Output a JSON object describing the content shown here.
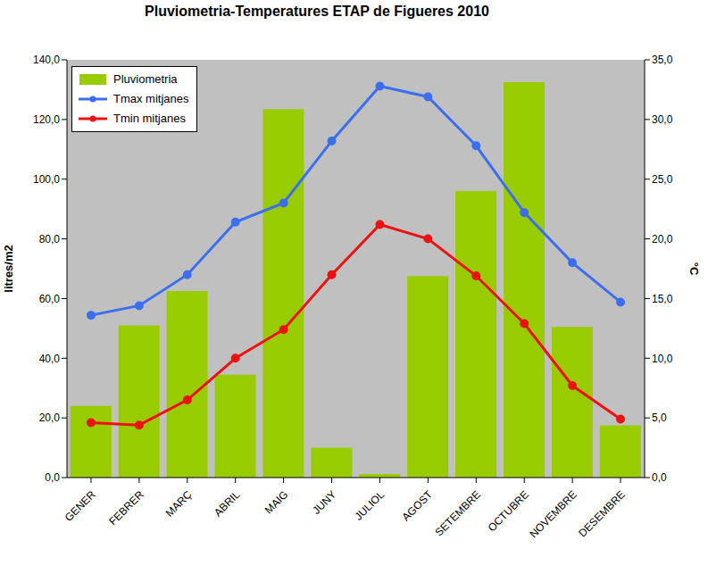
{
  "chart_data": {
    "type": "bar",
    "title": "Pluviometria-Temperatures ETAP de Figueres 2010",
    "categories": [
      "GENER",
      "FEBRER",
      "MARÇ",
      "ABRIL",
      "MAIG",
      "JUNY",
      "JULIOL",
      "AGOST",
      "SETEMBRE",
      "OCTUBRE",
      "NOVEMBRE",
      "DESEMBRE"
    ],
    "series": [
      {
        "name": "Pluviometria",
        "type": "bar",
        "color": "#99cc00",
        "values": [
          24,
          51,
          62.5,
          34.5,
          123.5,
          10,
          1.2,
          67.5,
          96,
          132.5,
          50.5,
          17.5
        ]
      },
      {
        "name": "Tmax mitjanes",
        "type": "line",
        "axis": "y2",
        "color": "#3b6ff0",
        "marker": "circle",
        "values": [
          13.6,
          14.4,
          17.0,
          21.4,
          23.0,
          28.2,
          32.8,
          31.9,
          27.8,
          22.2,
          18.0,
          14.7
        ]
      },
      {
        "name": "Tmin mitjanes",
        "type": "line",
        "axis": "y2",
        "color": "#ee1111",
        "marker": "circle",
        "values": [
          4.6,
          4.4,
          6.5,
          10.0,
          12.4,
          17.0,
          21.2,
          20.0,
          16.9,
          12.9,
          7.7,
          4.9
        ]
      }
    ],
    "ylabel": "litres/m2",
    "y2label": "°C",
    "ylim": [
      0,
      140
    ],
    "yticks": [
      {
        "value": 0,
        "label": "0,0"
      },
      {
        "value": 20,
        "label": "20,0"
      },
      {
        "value": 40,
        "label": "40,0"
      },
      {
        "value": 60,
        "label": "60,0"
      },
      {
        "value": 80,
        "label": "80,0"
      },
      {
        "value": 100,
        "label": "100,0"
      },
      {
        "value": 120,
        "label": "120,0"
      },
      {
        "value": 140,
        "label": "140,0"
      }
    ],
    "y2lim": [
      0,
      35
    ],
    "y2ticks": [
      {
        "value": 0,
        "label": "0,0"
      },
      {
        "value": 5,
        "label": "5,0"
      },
      {
        "value": 10,
        "label": "10,0"
      },
      {
        "value": 15,
        "label": "15,0"
      },
      {
        "value": 20,
        "label": "20,0"
      },
      {
        "value": 25,
        "label": "25,0"
      },
      {
        "value": 30,
        "label": "30,0"
      },
      {
        "value": 35,
        "label": "35,0"
      }
    ],
    "grid": false,
    "legend": "upper left"
  }
}
